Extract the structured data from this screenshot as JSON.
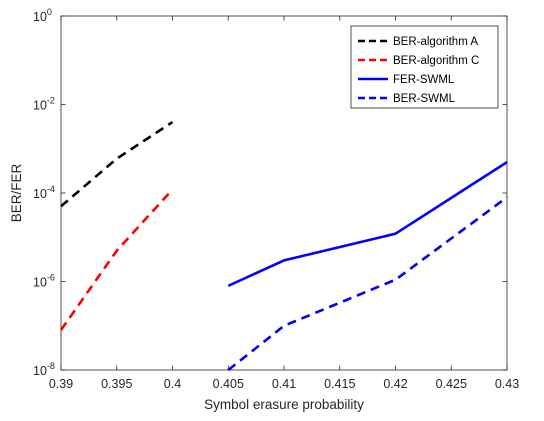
{
  "chart_data": {
    "type": "line",
    "title": "",
    "xlabel": "Symbol erasure probability",
    "ylabel": "BER/FER",
    "xlim": [
      0.39,
      0.43
    ],
    "ylim": [
      1e-08,
      1
    ],
    "yscale": "log",
    "grid": false,
    "legend_position": "top-right",
    "x_ticks": [
      "0.39",
      "0.395",
      "0.4",
      "0.405",
      "0.41",
      "0.415",
      "0.42",
      "0.425",
      "0.43"
    ],
    "y_ticks": [
      {
        "base": "10",
        "exp": "-8"
      },
      {
        "base": "10",
        "exp": "-6"
      },
      {
        "base": "10",
        "exp": "-4"
      },
      {
        "base": "10",
        "exp": "-2"
      },
      {
        "base": "10",
        "exp": "0"
      }
    ],
    "series": [
      {
        "name": "BER-algorithm A",
        "color": "#000000",
        "style": "dashed",
        "x": [
          0.39,
          0.395,
          0.4
        ],
        "y": [
          5e-05,
          0.0006,
          0.004
        ]
      },
      {
        "name": "BER-algorithm C",
        "color": "#ff0000",
        "style": "dashed",
        "x": [
          0.39,
          0.395,
          0.4
        ],
        "y": [
          8e-08,
          5e-06,
          0.00012
        ]
      },
      {
        "name": "FER-SWML",
        "color": "#0000ff",
        "style": "solid",
        "x": [
          0.405,
          0.41,
          0.42,
          0.43
        ],
        "y": [
          8e-07,
          3e-06,
          1.2e-05,
          0.0005
        ]
      },
      {
        "name": "BER-SWML",
        "color": "#0000ff",
        "style": "dashed",
        "x": [
          0.405,
          0.41,
          0.42,
          0.43
        ],
        "y": [
          1e-08,
          1e-07,
          1.1e-06,
          8e-05
        ]
      }
    ]
  }
}
